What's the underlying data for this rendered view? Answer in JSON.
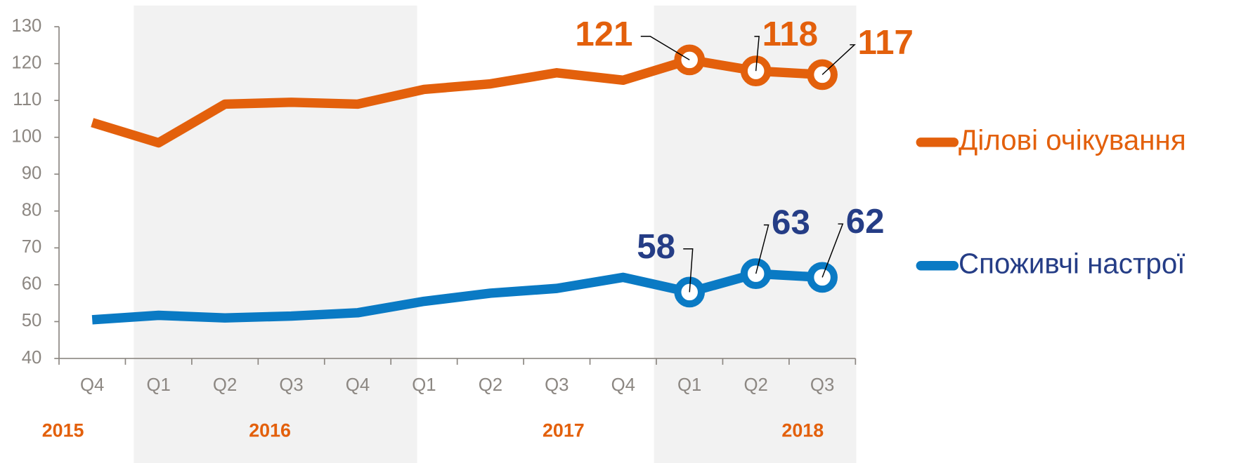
{
  "chart_data": {
    "type": "line",
    "categories": [
      "Q4",
      "Q1",
      "Q2",
      "Q3",
      "Q4",
      "Q1",
      "Q2",
      "Q3",
      "Q4",
      "Q1",
      "Q2",
      "Q3"
    ],
    "year_labels": [
      "2015",
      "2016",
      "2017",
      "2018"
    ],
    "ylim": [
      40,
      130
    ],
    "yticks": [
      40,
      50,
      60,
      70,
      80,
      90,
      100,
      110,
      120,
      130
    ],
    "grid": false,
    "legend": "right",
    "series": [
      {
        "name": "Ділові очікування",
        "color": "#e3600c",
        "label_color": "#e3600c",
        "values": [
          104,
          98.5,
          109,
          109.5,
          109,
          113,
          114.5,
          117.5,
          115.5,
          121,
          118,
          117
        ],
        "value_labels": [
          null,
          null,
          null,
          null,
          null,
          null,
          null,
          null,
          null,
          "121",
          "118",
          "117"
        ]
      },
      {
        "name": "Споживчі настрої",
        "color": "#0a7ac4",
        "label_color": "#253d86",
        "values": [
          50.5,
          51.7,
          51,
          51.5,
          52.4,
          55.5,
          57.7,
          59,
          62,
          58,
          63,
          62
        ],
        "value_labels": [
          null,
          null,
          null,
          null,
          null,
          null,
          null,
          null,
          null,
          "58",
          "63",
          "62"
        ]
      }
    ]
  }
}
